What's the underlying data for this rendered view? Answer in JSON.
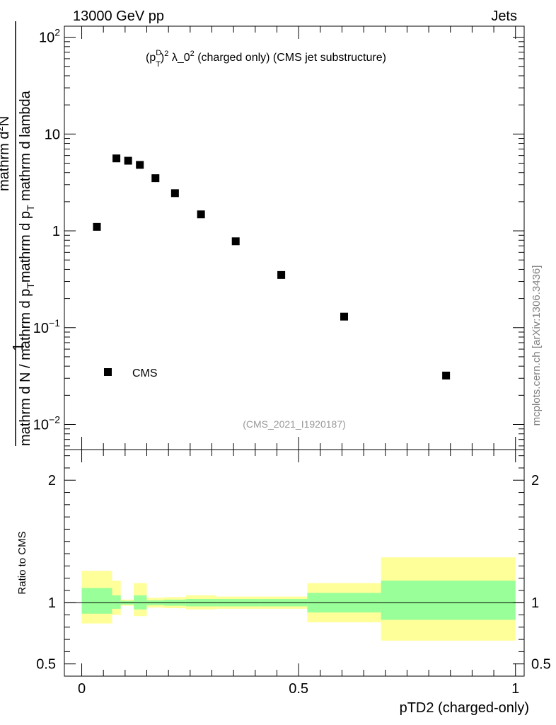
{
  "header": {
    "left": "13000 GeV pp",
    "right": "Jets"
  },
  "plot_title": {
    "prefix": "(p",
    "pt_sup": "D",
    "pt_sub": "T",
    "after_pt": ")",
    "sq": "2",
    "lambda": " λ_0",
    "sq2": "2",
    "rest": " (charged only) (CMS jet substructure)"
  },
  "ylabel": {
    "numerator": "1",
    "denominator_a": "mathrm d N / mathrm d p",
    "denominator_sub": "T",
    "denominator_b": "mathrm d p",
    "denominator_sub2": "T",
    "denominator_c": "mathrm d lambda",
    "denominator_sup": "2",
    "denominator_d": "N"
  },
  "ratio_ylabel": "Ratio to CMS",
  "xlabel": "pTD2 (charged-only)",
  "legend": {
    "label": "CMS"
  },
  "analysis_id": "(CMS_2021_I1920187)",
  "watermark": "mcplots.cern.ch [arXiv:1306.3436]",
  "colors": {
    "inner_band": "#99ff99",
    "outer_band": "#ffff99",
    "marker": "#000000"
  },
  "chart_data": [
    {
      "type": "scatter",
      "panel": "main",
      "yscale": "log",
      "xlim": [
        -0.04,
        1.02
      ],
      "ylim": [
        0.0055,
        130
      ],
      "y_ticks": [
        "10^-2",
        "10^-1",
        "1",
        "10",
        "10^2"
      ],
      "series": [
        {
          "name": "CMS",
          "x": [
            0.035,
            0.08,
            0.107,
            0.134,
            0.17,
            0.215,
            0.275,
            0.355,
            0.46,
            0.605,
            0.84
          ],
          "y": [
            1.1,
            5.6,
            5.3,
            4.8,
            3.5,
            2.45,
            1.48,
            0.78,
            0.35,
            0.13,
            0.032
          ]
        }
      ]
    },
    {
      "type": "area",
      "panel": "ratio",
      "ylim": [
        0.4,
        2.25
      ],
      "y_ticks": [
        "0.5",
        "1",
        "2"
      ],
      "x_ticks": [
        "0",
        "0.5",
        "1"
      ],
      "reference": 1,
      "bins": [
        {
          "x0": 0.0,
          "x1": 0.07,
          "inner": [
            0.91,
            1.12
          ],
          "outer": [
            0.83,
            1.26
          ]
        },
        {
          "x0": 0.07,
          "x1": 0.09,
          "inner": [
            0.95,
            1.06
          ],
          "outer": [
            0.9,
            1.18
          ]
        },
        {
          "x0": 0.09,
          "x1": 0.12,
          "inner": [
            0.985,
            1.015
          ],
          "outer": [
            0.975,
            1.025
          ]
        },
        {
          "x0": 0.12,
          "x1": 0.15,
          "inner": [
            0.945,
            1.06
          ],
          "outer": [
            0.89,
            1.16
          ]
        },
        {
          "x0": 0.15,
          "x1": 0.19,
          "inner": [
            0.98,
            1.02
          ],
          "outer": [
            0.96,
            1.04
          ]
        },
        {
          "x0": 0.19,
          "x1": 0.24,
          "inner": [
            0.975,
            1.025
          ],
          "outer": [
            0.955,
            1.045
          ]
        },
        {
          "x0": 0.24,
          "x1": 0.31,
          "inner": [
            0.97,
            1.03
          ],
          "outer": [
            0.945,
            1.06
          ]
        },
        {
          "x0": 0.31,
          "x1": 0.41,
          "inner": [
            0.97,
            1.03
          ],
          "outer": [
            0.95,
            1.05
          ]
        },
        {
          "x0": 0.41,
          "x1": 0.52,
          "inner": [
            0.97,
            1.03
          ],
          "outer": [
            0.95,
            1.05
          ]
        },
        {
          "x0": 0.52,
          "x1": 0.69,
          "inner": [
            0.92,
            1.08
          ],
          "outer": [
            0.84,
            1.16
          ]
        },
        {
          "x0": 0.69,
          "x1": 1.0,
          "inner": [
            0.86,
            1.18
          ],
          "outer": [
            0.69,
            1.37
          ]
        }
      ]
    }
  ]
}
